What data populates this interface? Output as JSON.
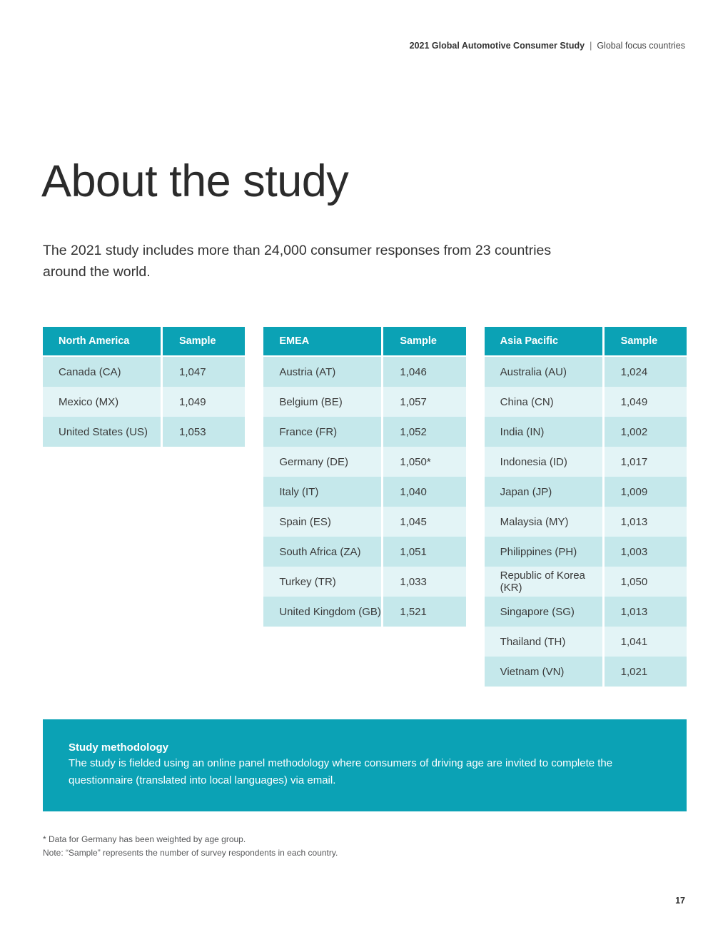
{
  "header": {
    "study_title": "2021 Global Automotive Consumer Study",
    "separator": "|",
    "section": "Global focus countries"
  },
  "title": "About the study",
  "intro": "The 2021 study includes more than 24,000 consumer responses from 23 countries around the world.",
  "tables": [
    {
      "region": "North America",
      "sample_header": "Sample",
      "rows": [
        {
          "country": "Canada (CA)",
          "sample": "1,047"
        },
        {
          "country": "Mexico (MX)",
          "sample": "1,049"
        },
        {
          "country": "United States (US)",
          "sample": "1,053"
        }
      ]
    },
    {
      "region": "EMEA",
      "sample_header": "Sample",
      "rows": [
        {
          "country": "Austria (AT)",
          "sample": "1,046"
        },
        {
          "country": "Belgium (BE)",
          "sample": "1,057"
        },
        {
          "country": "France (FR)",
          "sample": "1,052"
        },
        {
          "country": "Germany (DE)",
          "sample": "1,050*"
        },
        {
          "country": "Italy (IT)",
          "sample": "1,040"
        },
        {
          "country": "Spain (ES)",
          "sample": "1,045"
        },
        {
          "country": "South Africa (ZA)",
          "sample": "1,051"
        },
        {
          "country": "Turkey (TR)",
          "sample": "1,033"
        },
        {
          "country": "United Kingdom (GB)",
          "sample": "1,521"
        }
      ]
    },
    {
      "region": "Asia Pacific",
      "sample_header": "Sample",
      "rows": [
        {
          "country": "Australia (AU)",
          "sample": "1,024"
        },
        {
          "country": "China (CN)",
          "sample": "1,049"
        },
        {
          "country": "India (IN)",
          "sample": "1,002"
        },
        {
          "country": "Indonesia (ID)",
          "sample": "1,017"
        },
        {
          "country": "Japan (JP)",
          "sample": "1,009"
        },
        {
          "country": "Malaysia (MY)",
          "sample": "1,013"
        },
        {
          "country": "Philippines (PH)",
          "sample": "1,003"
        },
        {
          "country": "Republic of Korea (KR)",
          "sample": "1,050"
        },
        {
          "country": "Singapore (SG)",
          "sample": "1,013"
        },
        {
          "country": "Thailand (TH)",
          "sample": "1,041"
        },
        {
          "country": "Vietnam (VN)",
          "sample": "1,021"
        }
      ]
    }
  ],
  "methodology": {
    "heading": "Study methodology",
    "body": "The study is fielded using an online panel methodology where consumers of driving age are invited to complete the questionnaire (translated into local languages) via email."
  },
  "footnotes": [
    "* Data for Germany has been weighted by age group.",
    "Note: “Sample” represents the number of survey respondents in each country."
  ],
  "page_number": "17",
  "colors": {
    "teal": "#0ba2b5",
    "row_dark": "#c5e8eb",
    "row_light": "#e3f4f6"
  }
}
